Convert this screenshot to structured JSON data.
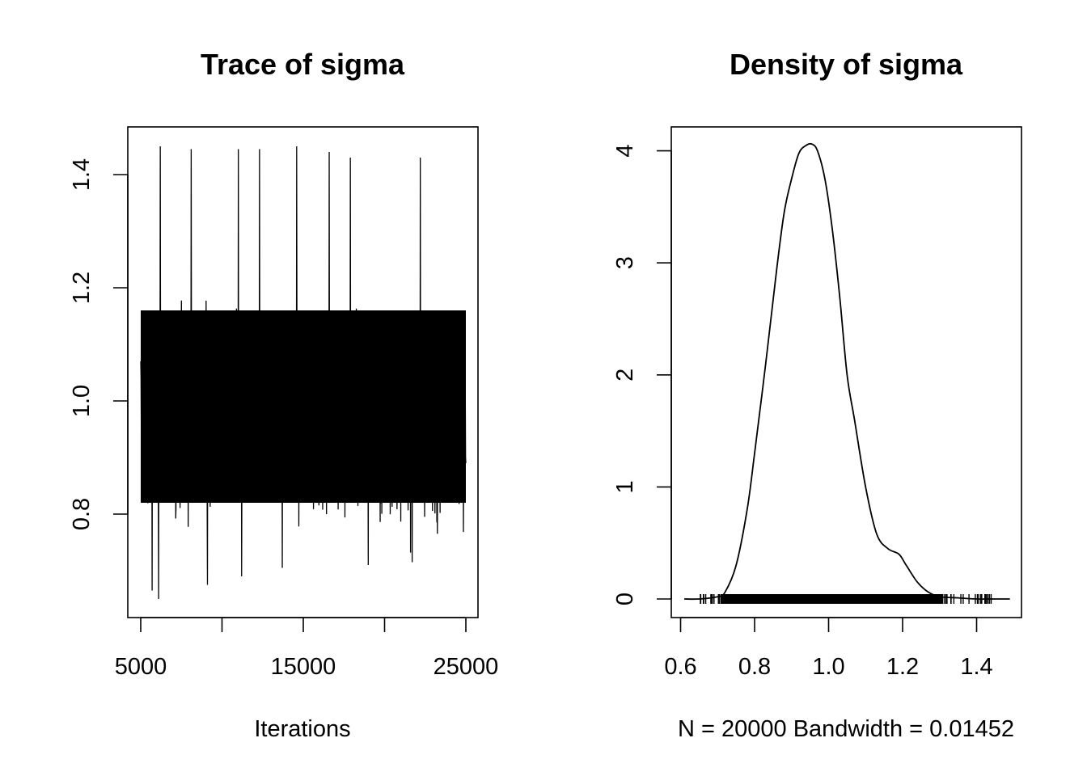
{
  "chart_data": [
    {
      "type": "line",
      "title": "Trace of sigma",
      "xlabel": "Iterations",
      "ylabel": "",
      "xlim": [
        5000,
        25000
      ],
      "ylim": [
        0.65,
        1.45
      ],
      "x_ticks": [
        5000,
        10000,
        15000,
        20000,
        25000
      ],
      "x_tick_labels": [
        "5000",
        "15000",
        "25000"
      ],
      "y_ticks": [
        0.8,
        1.0,
        1.2,
        1.4
      ],
      "y_tick_labels": [
        "0.8",
        "1.0",
        "1.2",
        "1.4"
      ],
      "series": [
        {
          "x_start": 5001,
          "x_end": 25000,
          "n_iterations": 20000,
          "mean": 0.97,
          "band_low": 0.82,
          "band_high": 1.16,
          "extreme_high_iterations": [
            6200,
            8100,
            11000,
            12300,
            14600,
            16600,
            17900,
            22200
          ],
          "extreme_high_values": [
            1.45,
            1.445,
            1.445,
            1.445,
            1.45,
            1.44,
            1.43,
            1.43
          ],
          "extreme_low_iterations": [
            5700,
            6100,
            9100,
            11200,
            13700,
            19000,
            21700
          ],
          "extreme_low_values": [
            0.665,
            0.65,
            0.675,
            0.69,
            0.705,
            0.71,
            0.715
          ]
        }
      ],
      "color": "#000000",
      "grid": false
    },
    {
      "type": "line",
      "title": "Density of sigma",
      "xlabel": "N = 20000   Bandwidth = 0.01452",
      "ylabel": "",
      "xlim": [
        0.6,
        1.5
      ],
      "ylim": [
        0,
        4.2
      ],
      "x_ticks": [
        0.6,
        0.8,
        1.0,
        1.2,
        1.4
      ],
      "x_tick_labels": [
        "0.6",
        "0.8",
        "1.0",
        "1.2",
        "1.4"
      ],
      "y_ticks": [
        0,
        1,
        2,
        3,
        4
      ],
      "y_tick_labels": [
        "0",
        "1",
        "2",
        "3",
        "4"
      ],
      "series": [
        {
          "x": [
            0.61,
            0.65,
            0.7,
            0.72,
            0.75,
            0.78,
            0.8,
            0.83,
            0.86,
            0.88,
            0.9,
            0.92,
            0.94,
            0.955,
            0.97,
            0.99,
            1.01,
            1.03,
            1.05,
            1.07,
            1.1,
            1.13,
            1.16,
            1.19,
            1.21,
            1.24,
            1.27,
            1.3,
            1.35,
            1.4,
            1.45,
            1.49
          ],
          "y": [
            0.0,
            0.0,
            0.02,
            0.06,
            0.3,
            0.8,
            1.3,
            2.1,
            2.95,
            3.45,
            3.75,
            3.98,
            4.05,
            4.06,
            4.0,
            3.75,
            3.3,
            2.7,
            2.0,
            1.6,
            1.0,
            0.58,
            0.45,
            0.4,
            0.3,
            0.15,
            0.06,
            0.02,
            0.01,
            0.0,
            0.0,
            0.0
          ]
        }
      ],
      "rug_range": [
        0.65,
        1.45
      ],
      "color": "#000000",
      "grid": false
    }
  ]
}
